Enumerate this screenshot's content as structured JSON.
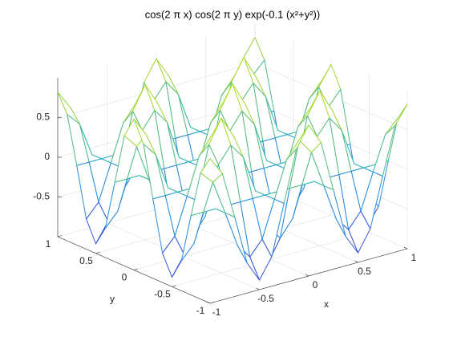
{
  "chart_data": {
    "type": "mesh",
    "title": "cos(2 π x) cos(2 π y) exp(-0.1 (x²+y²))",
    "x_label": "x",
    "y_label": "y",
    "x": [
      -1,
      -0.875,
      -0.75,
      -0.625,
      -0.5,
      -0.375,
      -0.25,
      -0.125,
      0,
      0.125,
      0.25,
      0.375,
      0.5,
      0.625,
      0.75,
      0.875,
      1
    ],
    "y": [
      -1,
      -0.875,
      -0.75,
      -0.625,
      -0.5,
      -0.375,
      -0.25,
      -0.125,
      0,
      0.125,
      0.25,
      0.375,
      0.5,
      0.625,
      0.75,
      0.875,
      1
    ],
    "z": [
      [
        0.82,
        0.59,
        0,
        -0.62,
        -0.88,
        -0.63,
        0,
        0.64,
        0.9,
        0.64,
        0,
        -0.63,
        -0.88,
        -0.62,
        0,
        0.59,
        0.82
      ],
      [
        0.59,
        0.43,
        0,
        -0.45,
        -0.64,
        -0.46,
        0,
        0.46,
        0.66,
        0.46,
        0,
        -0.46,
        -0.64,
        -0.45,
        0,
        0.43,
        0.59
      ],
      [
        0,
        0,
        0,
        0,
        0,
        0,
        0,
        0,
        0,
        0,
        0,
        0,
        0,
        0,
        0,
        0,
        0
      ],
      [
        -0.62,
        -0.45,
        0,
        0.46,
        0.66,
        0.47,
        0,
        -0.48,
        -0.68,
        -0.48,
        0,
        0.47,
        0.66,
        0.46,
        0,
        -0.45,
        -0.62
      ],
      [
        -0.88,
        -0.64,
        0,
        0.66,
        0.95,
        0.68,
        0,
        -0.69,
        -0.98,
        -0.69,
        0,
        0.68,
        0.95,
        0.66,
        0,
        -0.64,
        -0.88
      ],
      [
        -0.63,
        -0.46,
        0,
        0.47,
        0.68,
        0.49,
        0,
        -0.49,
        -0.7,
        -0.49,
        0,
        0.49,
        0.68,
        0.47,
        0,
        -0.46,
        -0.63
      ],
      [
        0,
        0,
        0,
        0,
        0,
        0,
        0,
        0,
        0,
        0,
        0,
        0,
        0,
        0,
        0,
        0,
        0
      ],
      [
        0.64,
        0.46,
        0,
        -0.48,
        -0.69,
        -0.49,
        0,
        0.5,
        0.71,
        0.5,
        0,
        -0.49,
        -0.69,
        -0.48,
        0,
        0.46,
        0.64
      ],
      [
        0.9,
        0.66,
        0,
        -0.68,
        -0.98,
        -0.7,
        0,
        0.71,
        1,
        0.71,
        0,
        -0.7,
        -0.98,
        -0.68,
        0,
        0.66,
        0.9
      ],
      [
        0.64,
        0.46,
        0,
        -0.48,
        -0.69,
        -0.49,
        0,
        0.5,
        0.71,
        0.5,
        0,
        -0.49,
        -0.69,
        -0.48,
        0,
        0.46,
        0.64
      ],
      [
        0,
        0,
        0,
        0,
        0,
        0,
        0,
        0,
        0,
        0,
        0,
        0,
        0,
        0,
        0,
        0,
        0
      ],
      [
        -0.63,
        -0.46,
        0,
        0.47,
        0.68,
        0.49,
        0,
        -0.49,
        -0.7,
        -0.49,
        0,
        0.49,
        0.68,
        0.47,
        0,
        -0.46,
        -0.63
      ],
      [
        -0.88,
        -0.64,
        0,
        0.66,
        0.95,
        0.68,
        0,
        -0.69,
        -0.98,
        -0.69,
        0,
        0.68,
        0.95,
        0.66,
        0,
        -0.64,
        -0.88
      ],
      [
        -0.62,
        -0.45,
        0,
        0.46,
        0.66,
        0.47,
        0,
        -0.48,
        -0.68,
        -0.48,
        0,
        0.47,
        0.66,
        0.46,
        0,
        -0.45,
        -0.62
      ],
      [
        0,
        0,
        0,
        0,
        0,
        0,
        0,
        0,
        0,
        0,
        0,
        0,
        0,
        0,
        0,
        0,
        0
      ],
      [
        0.59,
        0.43,
        0,
        -0.45,
        -0.64,
        -0.46,
        0,
        0.46,
        0.66,
        0.46,
        0,
        -0.46,
        -0.64,
        -0.45,
        0,
        0.43,
        0.59
      ],
      [
        0.82,
        0.59,
        0,
        -0.62,
        -0.88,
        -0.63,
        0,
        0.64,
        0.9,
        0.64,
        0,
        -0.63,
        -0.88,
        -0.62,
        0,
        0.59,
        0.82
      ]
    ],
    "xlim": [
      -1,
      1
    ],
    "ylim": [
      -1,
      1
    ],
    "zlim": [
      -1,
      1
    ],
    "xticks": [
      -1,
      -0.5,
      0,
      0.5,
      1
    ],
    "yticks": [
      -1,
      -0.5,
      0,
      0.5,
      1
    ],
    "zticks": [
      -0.5,
      0,
      0.5
    ],
    "grid": true,
    "colormap": [
      "#3e26a8",
      "#2f6cf0",
      "#1fb1c8",
      "#7cc74a",
      "#f9f90f"
    ]
  }
}
